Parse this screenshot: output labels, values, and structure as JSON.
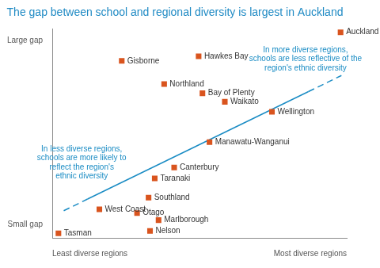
{
  "chart_data": {
    "type": "scatter",
    "title": "The gap between school and regional diversity is largest in Auckland",
    "x": [
      97.9,
      49.7,
      23.6,
      38.0,
      51.0,
      58.6,
      74.6,
      53.4,
      41.4,
      34.8,
      32.7,
      16.0,
      28.8,
      36.1,
      33.2,
      2.1
    ],
    "values": [
      98.5,
      87.0,
      84.8,
      73.7,
      69.3,
      65.2,
      60.4,
      45.9,
      33.7,
      28.5,
      19.3,
      13.7,
      11.9,
      8.5,
      3.3,
      2.2
    ],
    "point_labels": [
      "Auckland",
      "Hawkes Bay",
      "Gisborne",
      "Northland",
      "Bay of Plenty",
      "Waikato",
      "Wellington",
      "Manawatu-Wanganui",
      "Canterbury",
      "Taranaki",
      "Southland",
      "West Coast",
      "Otago",
      "Marlborough",
      "Nelson",
      "Tasman"
    ],
    "color": "#d9541e",
    "marker": "square",
    "xlim": [
      0,
      100
    ],
    "ylim": [
      0,
      100
    ],
    "xticks": [
      {
        "value": 0,
        "label": "Least diverse regions"
      },
      {
        "value": 100,
        "label": "Most diverse regions"
      }
    ],
    "yticks": [
      {
        "value": 6.3,
        "label": "Small gap"
      },
      {
        "value": 94.4,
        "label": "Large gap"
      }
    ],
    "grid": false,
    "trend_line": {
      "color": "#1a8cc4",
      "segments": [
        {
          "x": [
            3.9,
            12
          ],
          "values": [
            13.0,
            18.6
          ],
          "line_style": "dashed"
        },
        {
          "x": [
            12,
            87
          ],
          "values": [
            18.6,
            70.1
          ],
          "line_style": "solid"
        },
        {
          "x": [
            87,
            98.2
          ],
          "values": [
            70.1,
            77.8
          ],
          "line_style": "dashed"
        }
      ]
    },
    "annotations": [
      {
        "text": [
          "In more diverse regions,",
          "schools are less reflective of the",
          "region's ethnic diversity"
        ],
        "color": "#1a8cc4"
      },
      {
        "text": [
          "In less diverse regions,",
          "schools are more likely to",
          "reflect the region's",
          "ethnic diversity"
        ],
        "color": "#1a8cc4"
      }
    ]
  }
}
